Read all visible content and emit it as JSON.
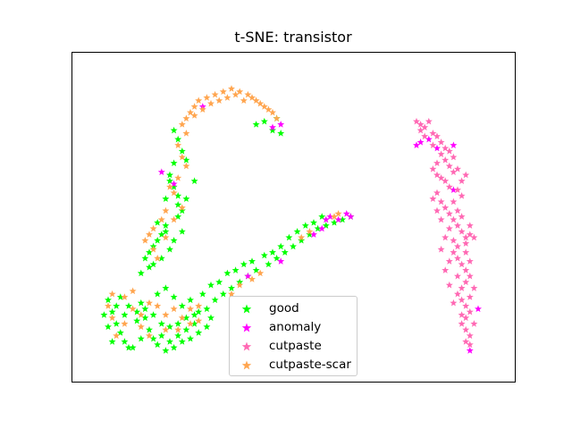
{
  "chart_data": {
    "type": "scatter",
    "title": "t-SNE: transistor",
    "xlabel": "",
    "ylabel": "",
    "axis_ticks_visible": false,
    "grid": false,
    "legend_position": "bottom-center",
    "marker": "star",
    "series": [
      {
        "name": "good",
        "color": "#00ff00",
        "points": [
          [
            0.2,
            0.64
          ],
          [
            0.21,
            0.6
          ],
          [
            0.22,
            0.57
          ],
          [
            0.22,
            0.54
          ],
          [
            0.23,
            0.52
          ],
          [
            0.22,
            0.5
          ],
          [
            0.19,
            0.47
          ],
          [
            0.18,
            0.44
          ],
          [
            0.17,
            0.42
          ],
          [
            0.16,
            0.4
          ],
          [
            0.15,
            0.38
          ],
          [
            0.14,
            0.36
          ],
          [
            0.15,
            0.33
          ],
          [
            0.13,
            0.31
          ],
          [
            0.16,
            0.34
          ],
          [
            0.18,
            0.36
          ],
          [
            0.2,
            0.39
          ],
          [
            0.21,
            0.42
          ],
          [
            0.19,
            0.45
          ],
          [
            0.17,
            0.48
          ],
          [
            0.24,
            0.56
          ],
          [
            0.23,
            0.45
          ],
          [
            0.26,
            0.62
          ],
          [
            0.05,
            0.22
          ],
          [
            0.06,
            0.18
          ],
          [
            0.07,
            0.14
          ],
          [
            0.08,
            0.11
          ],
          [
            0.09,
            0.08
          ],
          [
            0.1,
            0.06
          ],
          [
            0.06,
            0.08
          ],
          [
            0.05,
            0.13
          ],
          [
            0.04,
            0.17
          ],
          [
            0.08,
            0.23
          ],
          [
            0.1,
            0.2
          ],
          [
            0.12,
            0.18
          ],
          [
            0.13,
            0.21
          ],
          [
            0.14,
            0.16
          ],
          [
            0.15,
            0.12
          ],
          [
            0.16,
            0.09
          ],
          [
            0.18,
            0.1
          ],
          [
            0.2,
            0.08
          ],
          [
            0.22,
            0.1
          ],
          [
            0.24,
            0.12
          ],
          [
            0.26,
            0.14
          ],
          [
            0.27,
            0.18
          ],
          [
            0.29,
            0.19
          ],
          [
            0.31,
            0.22
          ],
          [
            0.33,
            0.24
          ],
          [
            0.35,
            0.26
          ],
          [
            0.37,
            0.28
          ],
          [
            0.39,
            0.3
          ],
          [
            0.41,
            0.32
          ],
          [
            0.44,
            0.34
          ],
          [
            0.46,
            0.36
          ],
          [
            0.48,
            0.38
          ],
          [
            0.5,
            0.4
          ],
          [
            0.52,
            0.42
          ],
          [
            0.54,
            0.44
          ],
          [
            0.56,
            0.46
          ],
          [
            0.58,
            0.47
          ],
          [
            0.6,
            0.48
          ],
          [
            0.62,
            0.49
          ],
          [
            0.64,
            0.5
          ],
          [
            0.17,
            0.24
          ],
          [
            0.19,
            0.26
          ],
          [
            0.21,
            0.23
          ],
          [
            0.23,
            0.2
          ],
          [
            0.25,
            0.22
          ],
          [
            0.28,
            0.24
          ],
          [
            0.3,
            0.27
          ],
          [
            0.32,
            0.28
          ],
          [
            0.34,
            0.31
          ],
          [
            0.36,
            0.32
          ],
          [
            0.38,
            0.34
          ],
          [
            0.4,
            0.35
          ],
          [
            0.43,
            0.37
          ],
          [
            0.45,
            0.38
          ],
          [
            0.47,
            0.4
          ],
          [
            0.49,
            0.43
          ],
          [
            0.51,
            0.45
          ],
          [
            0.53,
            0.47
          ],
          [
            0.55,
            0.48
          ],
          [
            0.57,
            0.5
          ],
          [
            0.11,
            0.06
          ],
          [
            0.13,
            0.09
          ],
          [
            0.17,
            0.07
          ],
          [
            0.19,
            0.05
          ],
          [
            0.21,
            0.06
          ],
          [
            0.23,
            0.08
          ],
          [
            0.25,
            0.09
          ],
          [
            0.27,
            0.11
          ],
          [
            0.29,
            0.13
          ],
          [
            0.3,
            0.16
          ],
          [
            0.26,
            0.17
          ],
          [
            0.24,
            0.16
          ],
          [
            0.22,
            0.14
          ],
          [
            0.2,
            0.13
          ],
          [
            0.18,
            0.14
          ],
          [
            0.16,
            0.17
          ],
          [
            0.14,
            0.19
          ],
          [
            0.12,
            0.15
          ],
          [
            0.09,
            0.17
          ],
          [
            0.07,
            0.2
          ],
          [
            0.41,
            0.81
          ],
          [
            0.43,
            0.82
          ],
          [
            0.45,
            0.79
          ],
          [
            0.46,
            0.83
          ],
          [
            0.47,
            0.78
          ],
          [
            0.21,
            0.79
          ],
          [
            0.22,
            0.76
          ],
          [
            0.23,
            0.72
          ],
          [
            0.21,
            0.68
          ],
          [
            0.24,
            0.69
          ],
          [
            0.19,
            0.56
          ],
          [
            0.2,
            0.62
          ]
        ]
      },
      {
        "name": "anomaly",
        "color": "#ff00ff",
        "points": [
          [
            0.55,
            0.44
          ],
          [
            0.57,
            0.46
          ],
          [
            0.58,
            0.49
          ],
          [
            0.61,
            0.49
          ],
          [
            0.63,
            0.51
          ],
          [
            0.64,
            0.5
          ],
          [
            0.59,
            0.5
          ],
          [
            0.47,
            0.35
          ],
          [
            0.39,
            0.3
          ],
          [
            0.47,
            0.81
          ],
          [
            0.45,
            0.8
          ],
          [
            0.21,
            0.61
          ],
          [
            0.18,
            0.65
          ],
          [
            0.28,
            0.87
          ],
          [
            0.8,
            0.74
          ],
          [
            0.81,
            0.75
          ],
          [
            0.83,
            0.76
          ],
          [
            0.85,
            0.73
          ],
          [
            0.89,
            0.74
          ],
          [
            0.89,
            0.59
          ],
          [
            0.95,
            0.19
          ],
          [
            0.93,
            0.05
          ]
        ]
      },
      {
        "name": "cutpaste",
        "color": "#ff69b4",
        "points": [
          [
            0.8,
            0.82
          ],
          [
            0.81,
            0.81
          ],
          [
            0.82,
            0.8
          ],
          [
            0.83,
            0.82
          ],
          [
            0.84,
            0.78
          ],
          [
            0.85,
            0.77
          ],
          [
            0.86,
            0.75
          ],
          [
            0.87,
            0.73
          ],
          [
            0.88,
            0.72
          ],
          [
            0.89,
            0.7
          ],
          [
            0.87,
            0.69
          ],
          [
            0.85,
            0.68
          ],
          [
            0.84,
            0.66
          ],
          [
            0.85,
            0.64
          ],
          [
            0.87,
            0.62
          ],
          [
            0.88,
            0.6
          ],
          [
            0.9,
            0.59
          ],
          [
            0.91,
            0.62
          ],
          [
            0.92,
            0.64
          ],
          [
            0.9,
            0.66
          ],
          [
            0.88,
            0.67
          ],
          [
            0.86,
            0.71
          ],
          [
            0.84,
            0.74
          ],
          [
            0.82,
            0.77
          ],
          [
            0.81,
            0.79
          ],
          [
            0.85,
            0.58
          ],
          [
            0.86,
            0.55
          ],
          [
            0.87,
            0.53
          ],
          [
            0.88,
            0.51
          ],
          [
            0.89,
            0.49
          ],
          [
            0.9,
            0.47
          ],
          [
            0.91,
            0.45
          ],
          [
            0.92,
            0.43
          ],
          [
            0.93,
            0.44
          ],
          [
            0.94,
            0.43
          ],
          [
            0.92,
            0.41
          ],
          [
            0.9,
            0.4
          ],
          [
            0.89,
            0.38
          ],
          [
            0.9,
            0.36
          ],
          [
            0.91,
            0.34
          ],
          [
            0.92,
            0.32
          ],
          [
            0.93,
            0.3
          ],
          [
            0.92,
            0.28
          ],
          [
            0.91,
            0.26
          ],
          [
            0.9,
            0.24
          ],
          [
            0.91,
            0.22
          ],
          [
            0.92,
            0.2
          ],
          [
            0.93,
            0.18
          ],
          [
            0.92,
            0.16
          ],
          [
            0.91,
            0.14
          ],
          [
            0.92,
            0.12
          ],
          [
            0.93,
            0.1
          ],
          [
            0.92,
            0.08
          ],
          [
            0.93,
            0.07
          ],
          [
            0.91,
            0.17
          ],
          [
            0.89,
            0.21
          ],
          [
            0.88,
            0.27
          ],
          [
            0.87,
            0.32
          ],
          [
            0.88,
            0.35
          ],
          [
            0.86,
            0.39
          ],
          [
            0.87,
            0.43
          ],
          [
            0.88,
            0.46
          ],
          [
            0.86,
            0.49
          ],
          [
            0.85,
            0.52
          ],
          [
            0.84,
            0.56
          ],
          [
            0.86,
            0.63
          ],
          [
            0.89,
            0.65
          ],
          [
            0.91,
            0.57
          ],
          [
            0.89,
            0.55
          ],
          [
            0.9,
            0.52
          ],
          [
            0.91,
            0.5
          ],
          [
            0.93,
            0.47
          ],
          [
            0.92,
            0.38
          ],
          [
            0.93,
            0.35
          ],
          [
            0.94,
            0.26
          ],
          [
            0.93,
            0.23
          ],
          [
            0.94,
            0.14
          ],
          [
            0.9,
            0.3
          ],
          [
            0.89,
            0.42
          ]
        ]
      },
      {
        "name": "cutpaste-scar",
        "color": "#ffa54f",
        "points": [
          [
            0.25,
            0.85
          ],
          [
            0.26,
            0.87
          ],
          [
            0.27,
            0.89
          ],
          [
            0.29,
            0.9
          ],
          [
            0.31,
            0.91
          ],
          [
            0.33,
            0.92
          ],
          [
            0.35,
            0.93
          ],
          [
            0.37,
            0.92
          ],
          [
            0.39,
            0.91
          ],
          [
            0.41,
            0.89
          ],
          [
            0.43,
            0.87
          ],
          [
            0.45,
            0.85
          ],
          [
            0.46,
            0.83
          ],
          [
            0.44,
            0.86
          ],
          [
            0.42,
            0.88
          ],
          [
            0.4,
            0.9
          ],
          [
            0.38,
            0.89
          ],
          [
            0.36,
            0.91
          ],
          [
            0.34,
            0.9
          ],
          [
            0.32,
            0.89
          ],
          [
            0.3,
            0.88
          ],
          [
            0.28,
            0.86
          ],
          [
            0.26,
            0.84
          ],
          [
            0.24,
            0.83
          ],
          [
            0.23,
            0.81
          ],
          [
            0.24,
            0.78
          ],
          [
            0.22,
            0.74
          ],
          [
            0.23,
            0.7
          ],
          [
            0.24,
            0.67
          ],
          [
            0.22,
            0.63
          ],
          [
            0.2,
            0.6
          ],
          [
            0.21,
            0.58
          ],
          [
            0.19,
            0.52
          ],
          [
            0.18,
            0.49
          ],
          [
            0.16,
            0.46
          ],
          [
            0.15,
            0.44
          ],
          [
            0.14,
            0.42
          ],
          [
            0.16,
            0.39
          ],
          [
            0.17,
            0.36
          ],
          [
            0.19,
            0.43
          ],
          [
            0.21,
            0.49
          ],
          [
            0.23,
            0.53
          ],
          [
            0.05,
            0.2
          ],
          [
            0.06,
            0.16
          ],
          [
            0.07,
            0.1
          ],
          [
            0.09,
            0.14
          ],
          [
            0.11,
            0.19
          ],
          [
            0.13,
            0.17
          ],
          [
            0.15,
            0.21
          ],
          [
            0.17,
            0.2
          ],
          [
            0.19,
            0.17
          ],
          [
            0.21,
            0.19
          ],
          [
            0.23,
            0.16
          ],
          [
            0.25,
            0.19
          ],
          [
            0.27,
            0.2
          ],
          [
            0.13,
            0.13
          ],
          [
            0.15,
            0.1
          ],
          [
            0.19,
            0.12
          ],
          [
            0.22,
            0.12
          ],
          [
            0.25,
            0.14
          ],
          [
            0.27,
            0.15
          ],
          [
            0.09,
            0.23
          ],
          [
            0.11,
            0.25
          ],
          [
            0.06,
            0.24
          ],
          [
            0.37,
            0.27
          ],
          [
            0.4,
            0.29
          ],
          [
            0.42,
            0.31
          ],
          [
            0.61,
            0.51
          ],
          [
            0.6,
            0.5
          ],
          [
            0.54,
            0.45
          ],
          [
            0.52,
            0.43
          ],
          [
            0.35,
            0.24
          ]
        ]
      }
    ]
  }
}
